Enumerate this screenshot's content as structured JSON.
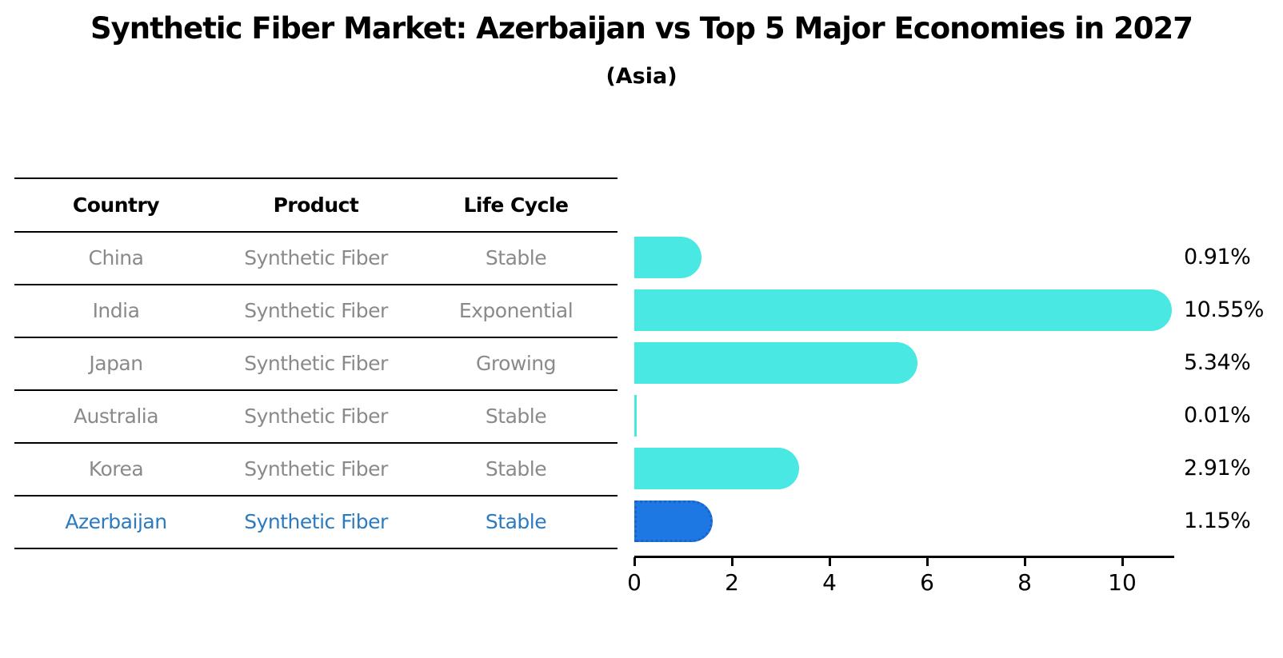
{
  "chart_data": {
    "type": "bar",
    "orientation": "horizontal",
    "title": "Synthetic Fiber Market: Azerbaijan vs Top 5 Major Economies in 2027",
    "subtitle": "(Asia)",
    "categories": [
      "China",
      "India",
      "Japan",
      "Australia",
      "Korea",
      "Azerbaijan"
    ],
    "values": [
      0.91,
      10.55,
      5.34,
      0.01,
      2.91,
      1.15
    ],
    "value_labels": [
      "0.91%",
      "10.55%",
      "5.34%",
      "0.01%",
      "2.91%",
      "1.15%"
    ],
    "highlighted_category": "Azerbaijan",
    "xlabel": "",
    "ylabel": "",
    "xlim": [
      0,
      11.1
    ],
    "xticks": [
      "0",
      "2",
      "4",
      "6",
      "8",
      "10"
    ],
    "grid": "off",
    "legend": "none",
    "colors": {
      "bar": "#4AE8E3",
      "highlight_bar": "#1E78E3",
      "highlight_bar_border": "#1A63C8",
      "highlight_text": "#2B7BBE",
      "row_text": "#8A8A8A",
      "text": "#000000"
    }
  },
  "table": {
    "headers": [
      "Country",
      "Product",
      "Life Cycle"
    ],
    "rows": [
      {
        "country": "China",
        "product": "Synthetic Fiber",
        "life_cycle": "Stable"
      },
      {
        "country": "India",
        "product": "Synthetic Fiber",
        "life_cycle": "Exponential"
      },
      {
        "country": "Japan",
        "product": "Synthetic Fiber",
        "life_cycle": "Growing"
      },
      {
        "country": "Australia",
        "product": "Synthetic Fiber",
        "life_cycle": "Stable"
      },
      {
        "country": "Korea",
        "product": "Synthetic Fiber",
        "life_cycle": "Stable"
      },
      {
        "country": "Azerbaijan",
        "product": "Synthetic Fiber",
        "life_cycle": "Stable"
      }
    ],
    "highlighted_row": "Azerbaijan"
  }
}
